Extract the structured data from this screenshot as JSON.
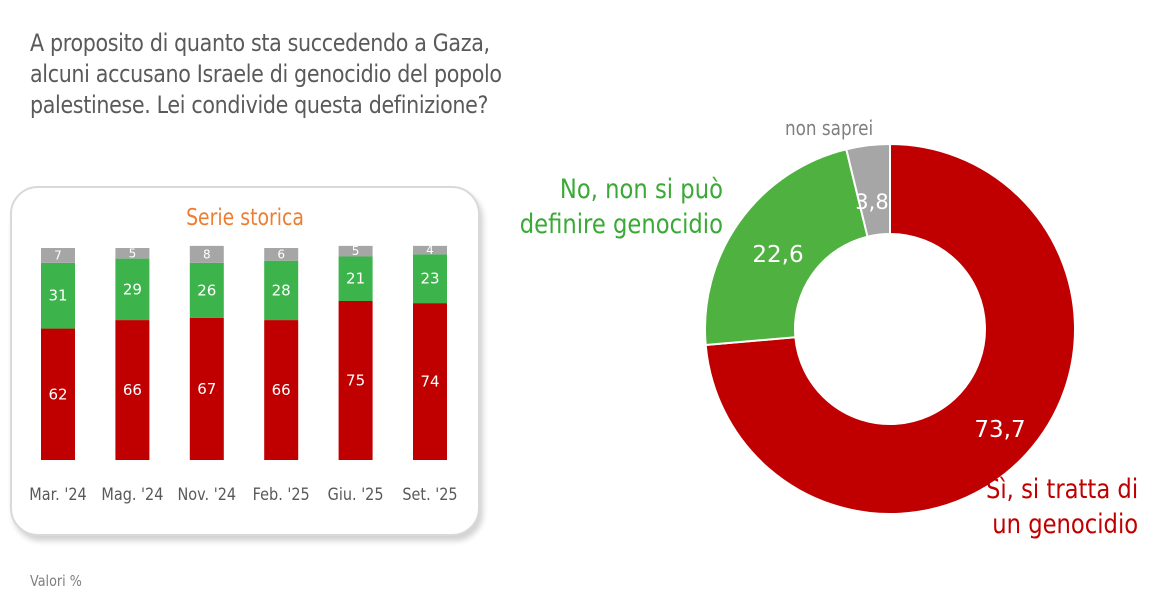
{
  "question": {
    "line1": "A proposito di quanto sta succedendo a Gaza,",
    "line2": "alcuni accusano Israele di genocidio del popolo",
    "line3": "palestinese. Lei condivide questa definizione?"
  },
  "footnote": "Valori %",
  "colors": {
    "yes": "#c00000",
    "no": "#3cb44b",
    "no_donut": "#4fb13f",
    "dont_know": "#a6a6a6",
    "title": "#ed7d31"
  },
  "chart_data": [
    {
      "type": "bar",
      "stacked": true,
      "title": "Serie storica",
      "categories": [
        "Mar. '24",
        "Mag. '24",
        "Nov. '24",
        "Feb. '25",
        "Giu. '25",
        "Set. '25"
      ],
      "series": [
        {
          "name": "Sì, si tratta di un genocidio",
          "values": [
            62,
            66,
            67,
            66,
            75,
            74
          ],
          "labels": [
            "62",
            "66",
            "67",
            "66",
            "75",
            "74"
          ]
        },
        {
          "name": "No, non si può definire genocidio",
          "values": [
            31,
            29,
            26,
            28,
            21,
            23
          ],
          "labels": [
            "31",
            "29",
            "26",
            "28",
            "21",
            "23"
          ]
        },
        {
          "name": "non saprei",
          "values": [
            7,
            5,
            8,
            6,
            5,
            4
          ],
          "labels": [
            "7",
            "5",
            "8",
            "6",
            "5",
            "4"
          ]
        }
      ],
      "ylim": [
        0,
        100
      ]
    },
    {
      "type": "pie",
      "donut": true,
      "slices": [
        {
          "name": "Sì, si tratta di un genocidio",
          "line1": "Sì, si tratta di",
          "line2": "un genocidio",
          "value": 73.7,
          "label": "73,7"
        },
        {
          "name": "No, non si può definire genocidio",
          "line1": "No, non si può",
          "line2": "definire genocidio",
          "value": 22.6,
          "label": "22,6"
        },
        {
          "name": "non saprei",
          "value": 3.8,
          "label": "3,8"
        }
      ]
    }
  ]
}
